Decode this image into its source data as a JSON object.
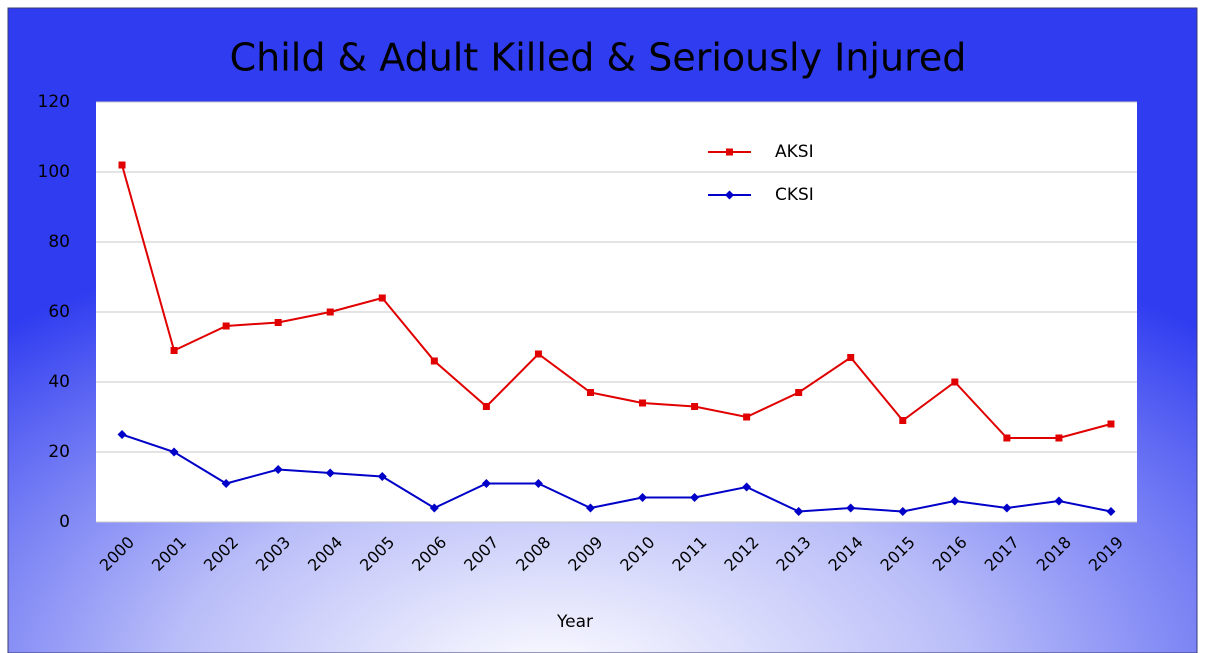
{
  "chart_data": {
    "type": "line",
    "title": "Child & Adult Killed & Seriously Injured",
    "x_label": "Year",
    "categories": [
      "2000",
      "2001",
      "2002",
      "2003",
      "2004",
      "2005",
      "2006",
      "2007",
      "2008",
      "2009",
      "2010",
      "2011",
      "2012",
      "2013",
      "2014",
      "2015",
      "2016",
      "2017",
      "2018",
      "2019"
    ],
    "series": [
      {
        "name": "AKSI",
        "color": "#e00000",
        "marker": "square",
        "values": [
          102,
          49,
          56,
          57,
          60,
          64,
          46,
          33,
          48,
          37,
          34,
          33,
          30,
          37,
          47,
          29,
          40,
          24,
          24,
          28
        ]
      },
      {
        "name": "CKSI",
        "color": "#0000c8",
        "marker": "diamond",
        "values": [
          25,
          20,
          11,
          15,
          14,
          13,
          4,
          11,
          11,
          4,
          7,
          7,
          10,
          3,
          4,
          3,
          6,
          4,
          6,
          3
        ]
      }
    ],
    "ylim": [
      0,
      120
    ],
    "yticks": [
      0,
      20,
      40,
      60,
      80,
      100,
      120
    ],
    "grid": true,
    "legend": "upper right"
  }
}
